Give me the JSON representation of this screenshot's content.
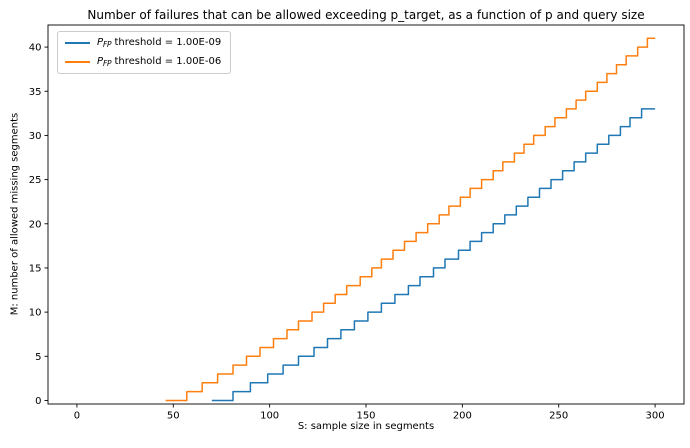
{
  "title": "Number of failures that can be allowed exceeding p_target, as a function of p and query size",
  "axes": {
    "xlabel": "S: sample size in segments",
    "ylabel": "M: number of allowed missing segments",
    "x_ticks": [
      0,
      50,
      100,
      150,
      200,
      250,
      300
    ],
    "y_ticks": [
      0,
      5,
      10,
      15,
      20,
      25,
      30,
      35,
      40
    ],
    "xlim": [
      -15,
      315
    ],
    "ylim": [
      -0.4,
      42.5
    ],
    "grid": false,
    "frame_color": "#000000",
    "background": "#ffffff"
  },
  "legend": {
    "position": "upper-left",
    "border_color": "#cccccc",
    "entries": [
      {
        "symbol_italic": "P",
        "symbol_sub": "FP",
        "text": "threshold = 1.00E-09",
        "color": "#1f77b4"
      },
      {
        "symbol_italic": "P",
        "symbol_sub": "FP",
        "text": "threshold = 1.00E-06",
        "color": "#ff7f0e"
      }
    ]
  },
  "chart_data": {
    "type": "line",
    "style": "step-post",
    "title": "Number of failures that can be allowed exceeding p_target, as a function of p and query size",
    "xlabel": "S: sample size in segments",
    "ylabel": "M: number of allowed missing segments",
    "xlim": [
      -15,
      315
    ],
    "ylim": [
      -0.4,
      42.5
    ],
    "grid": false,
    "legend_position": "upper-left",
    "description": "Step curves: M starts at 0 at start_x and increases by 1 at each S value listed in riser_x, ending flat at end_x.",
    "series": [
      {
        "id": "pfp-1e-09",
        "name": "P_FP threshold = 1.00E-09",
        "color": "#1f77b4",
        "start_x": 70,
        "start_y": 0,
        "end_x": 300,
        "final_y": 33,
        "riser_x": [
          81,
          90,
          99,
          107,
          115,
          123,
          130,
          137,
          144,
          151,
          158,
          165,
          172,
          178,
          185,
          191,
          198,
          204,
          210,
          216,
          222,
          228,
          234,
          240,
          246,
          252,
          258,
          264,
          270,
          276,
          282,
          287,
          293
        ]
      },
      {
        "id": "pfp-1e-06",
        "name": "P_FP threshold = 1.00E-06",
        "color": "#ff7f0e",
        "start_x": 46,
        "start_y": 0,
        "end_x": 300,
        "final_y": 41,
        "riser_x": [
          57,
          65,
          73,
          81,
          88,
          95,
          102,
          109,
          115,
          122,
          128,
          134,
          140,
          147,
          153,
          158,
          164,
          170,
          176,
          182,
          188,
          193,
          199,
          204,
          210,
          216,
          221,
          227,
          232,
          237,
          243,
          248,
          254,
          259,
          264,
          270,
          275,
          280,
          285,
          291,
          296
        ]
      }
    ]
  }
}
